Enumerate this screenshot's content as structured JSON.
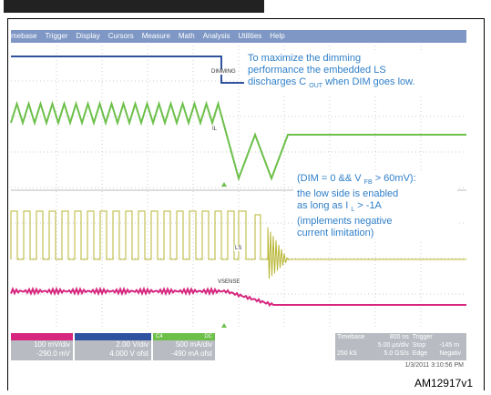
{
  "menu": [
    "mebase",
    "Trigger",
    "Display",
    "Cursors",
    "Measure",
    "Math",
    "Analysis",
    "Utilities",
    "Help"
  ],
  "annotations": [
    {
      "lines": [
        [
          {
            "text": "To maximize the dimming"
          }
        ],
        [
          {
            "text": "performance the embedded LS"
          }
        ],
        [
          {
            "text": "discharges C"
          },
          {
            "text": "OUT",
            "sub": true
          },
          {
            "text": "when DIM goes low."
          }
        ]
      ]
    },
    {
      "lines": [
        [
          {
            "text": "(DIM = 0 && V"
          },
          {
            "text": "FB",
            "sub": true
          },
          {
            "text": "> 60mV):"
          }
        ],
        [
          {
            "text": "the low side is enabled"
          }
        ],
        [
          {
            "text": "as long as I"
          },
          {
            "text": "L",
            "sub": true
          },
          {
            "text": "> -1A"
          }
        ],
        [
          {
            "text": "(implements negative"
          }
        ],
        [
          {
            "text": "current limitation)"
          }
        ]
      ]
    }
  ],
  "trace_labels": {
    "dimming": "DIMMING",
    "il": "IL",
    "ls": "LS",
    "vsense": "VSENSE"
  },
  "channels": [
    {
      "scale": "100 mV/div",
      "offset": "-290.0 mV"
    },
    {
      "scale": "2.00 V/div",
      "offset": "4.000 V ofst"
    },
    {
      "name": "C4",
      "coupling": "DC",
      "scale": "500 mA/div",
      "offset": "-490 mA ofst"
    }
  ],
  "timebase": {
    "label": "Timebase",
    "delay": "800 ns",
    "per_div": "5.00 µs/div",
    "samples": "250 kS",
    "rate": "5.0 GS/s"
  },
  "trigger": {
    "label": "Trigger",
    "mode": "Stop",
    "level": "-145 m",
    "type": "Edge",
    "slope": "Negativ"
  },
  "timestamp": "1/3/2011 3:10:56 PM",
  "figure_id": "AM12917v1"
}
